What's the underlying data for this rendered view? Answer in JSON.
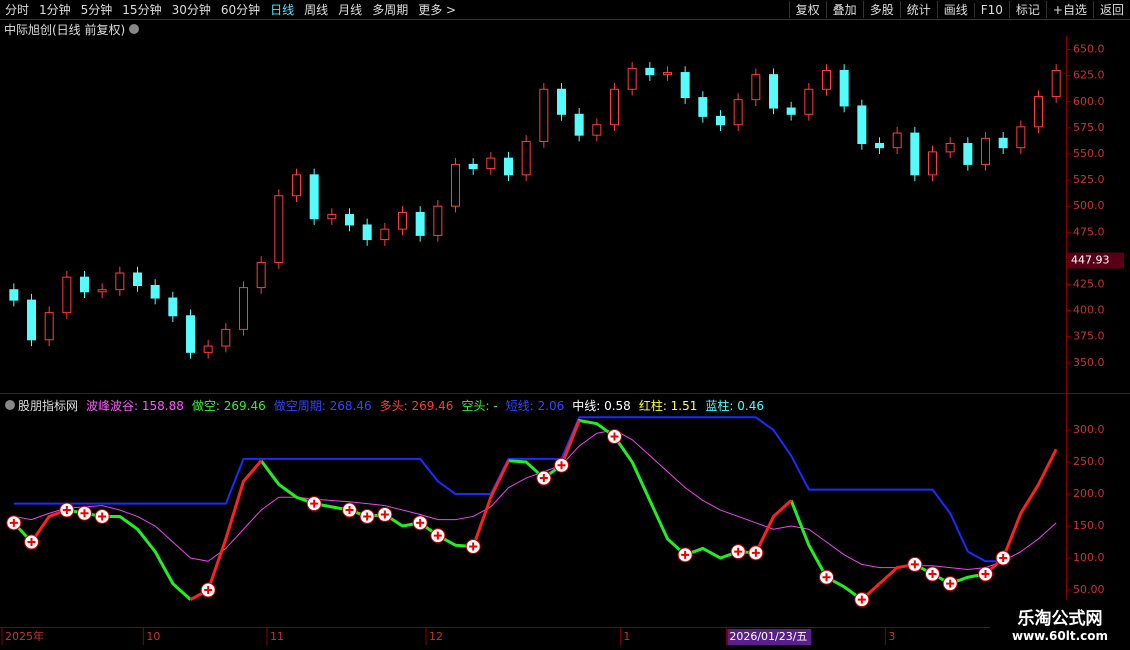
{
  "toolbar": {
    "left": [
      "分时",
      "1分钟",
      "5分钟",
      "15分钟",
      "30分钟",
      "60分钟",
      "日线",
      "周线",
      "月线",
      "多周期",
      "更多 >"
    ],
    "active": 6,
    "right": [
      "复权",
      "叠加",
      "多股",
      "统计",
      "画线",
      "F10",
      "标记",
      "+自选",
      "返回"
    ]
  },
  "chart_data": [
    {
      "type": "candlestick",
      "title": "中际旭创(日线 前复权)",
      "open": [
        420,
        410,
        372,
        398,
        432,
        418,
        420,
        436,
        424,
        412,
        395,
        360,
        366,
        382,
        422,
        446,
        510,
        530,
        488,
        492,
        482,
        468,
        478,
        494,
        472,
        500,
        540,
        536,
        546,
        530,
        562,
        612,
        588,
        568,
        578,
        612,
        632,
        626,
        628,
        604,
        586,
        578,
        602,
        626,
        594,
        588,
        612,
        630,
        596,
        560,
        556,
        570,
        530,
        552,
        560,
        540,
        565,
        556,
        576,
        605
      ],
      "high": [
        426,
        416,
        404,
        438,
        438,
        426,
        442,
        442,
        430,
        418,
        401,
        372,
        388,
        428,
        452,
        516,
        536,
        536,
        498,
        498,
        488,
        484,
        500,
        500,
        506,
        546,
        546,
        552,
        552,
        568,
        618,
        618,
        594,
        584,
        618,
        638,
        638,
        634,
        634,
        610,
        592,
        608,
        632,
        632,
        600,
        618,
        636,
        636,
        602,
        566,
        576,
        576,
        558,
        566,
        566,
        571,
        571,
        582,
        611,
        636
      ],
      "low": [
        404,
        366,
        366,
        392,
        412,
        412,
        414,
        418,
        406,
        389,
        354,
        354,
        360,
        376,
        416,
        440,
        504,
        482,
        482,
        476,
        462,
        462,
        472,
        466,
        466,
        494,
        530,
        530,
        524,
        524,
        556,
        582,
        562,
        562,
        572,
        606,
        620,
        620,
        598,
        580,
        572,
        572,
        596,
        588,
        582,
        582,
        606,
        590,
        554,
        550,
        550,
        524,
        524,
        546,
        534,
        534,
        550,
        550,
        570,
        599
      ],
      "close": [
        410,
        372,
        398,
        432,
        418,
        420,
        436,
        424,
        412,
        395,
        360,
        366,
        382,
        422,
        446,
        510,
        530,
        488,
        492,
        482,
        468,
        478,
        494,
        472,
        500,
        540,
        536,
        546,
        530,
        562,
        612,
        588,
        568,
        578,
        612,
        632,
        626,
        628,
        604,
        586,
        578,
        602,
        626,
        594,
        588,
        612,
        630,
        596,
        560,
        556,
        570,
        530,
        552,
        560,
        540,
        565,
        556,
        576,
        605,
        630
      ],
      "up_color": "#ff3c3c",
      "down_color": "#54fcfc",
      "ylim": [
        322,
        663
      ],
      "yticks": [
        {
          "value": 350,
          "label": "350.0"
        },
        {
          "value": 375,
          "label": "375.0"
        },
        {
          "value": 400,
          "label": "400.0"
        },
        {
          "value": 425,
          "label": "425.0"
        },
        {
          "value": 450,
          "label": "450.0"
        },
        {
          "value": 475,
          "label": "475.0"
        },
        {
          "value": 500,
          "label": "500.0"
        },
        {
          "value": 525,
          "label": "525.0"
        },
        {
          "value": 550,
          "label": "550.0"
        },
        {
          "value": 575,
          "label": "575.0"
        },
        {
          "value": 600,
          "label": "600.0"
        },
        {
          "value": 625,
          "label": "625.0"
        },
        {
          "value": 650,
          "label": "650.0"
        }
      ],
      "cursor_price": 447.93
    },
    {
      "type": "line",
      "title": "股朋指标网",
      "legend": [
        {
          "label": "波峰波谷: 158.88",
          "color": "#ff55ff"
        },
        {
          "label": "做空: 269.46",
          "color": "#33ee33"
        },
        {
          "label": "做空周期: 268.46",
          "color": "#3344ff"
        },
        {
          "label": "多头: 269.46",
          "color": "#ff3a3a"
        },
        {
          "label": "空头: -",
          "color": "#33ee33"
        },
        {
          "label": "短线: 2.06",
          "color": "#3344ff"
        },
        {
          "label": "中线: 0.58",
          "color": "#ffffff"
        },
        {
          "label": "红柱: 1.51",
          "color": "#ffff44"
        },
        {
          "label": "蓝柱: 0.46",
          "color": "#44ffff"
        }
      ],
      "series": [
        {
          "legend": 0,
          "color": "#ee44ee",
          "width": 1,
          "values": [
            165,
            160,
            170,
            178,
            180,
            182,
            175,
            165,
            150,
            125,
            100,
            95,
            115,
            145,
            175,
            195,
            195,
            192,
            190,
            188,
            185,
            182,
            175,
            168,
            160,
            160,
            165,
            180,
            210,
            225,
            235,
            245,
            275,
            295,
            300,
            285,
            260,
            235,
            210,
            190,
            175,
            165,
            155,
            145,
            150,
            145,
            125,
            105,
            90,
            85,
            85,
            88,
            88,
            85,
            82,
            85,
            95,
            110,
            130,
            155
          ]
        },
        {
          "legend": 2,
          "color": "#1a2cff",
          "width": 2,
          "values": [
            185,
            185,
            185,
            185,
            185,
            185,
            185,
            185,
            185,
            185,
            185,
            185,
            185,
            255,
            255,
            255,
            255,
            255,
            255,
            255,
            255,
            255,
            255,
            255,
            220,
            200,
            200,
            200,
            255,
            255,
            255,
            255,
            320,
            320,
            320,
            320,
            320,
            320,
            320,
            320,
            320,
            320,
            320,
            300,
            260,
            207,
            207,
            207,
            207,
            207,
            207,
            207,
            207,
            170,
            110,
            95,
            95,
            null,
            null,
            null
          ]
        },
        {
          "legend": 1,
          "color": "#22ee22",
          "width": 3,
          "values": [
            155,
            125,
            null,
            175,
            170,
            165,
            165,
            145,
            110,
            60,
            35,
            null,
            null,
            null,
            252,
            215,
            195,
            185,
            180,
            175,
            165,
            168,
            150,
            155,
            135,
            120,
            118,
            null,
            252,
            250,
            225,
            245,
            315,
            310,
            290,
            250,
            190,
            130,
            105,
            115,
            100,
            110,
            108,
            null,
            190,
            120,
            70,
            55,
            35,
            null,
            null,
            90,
            75,
            60,
            70,
            75,
            null,
            null,
            null,
            null
          ]
        },
        {
          "legend": 3,
          "color": "#ff2020",
          "width": 3,
          "values": [
            null,
            125,
            165,
            175,
            null,
            null,
            null,
            null,
            null,
            null,
            35,
            50,
            130,
            220,
            252,
            null,
            null,
            null,
            null,
            null,
            null,
            null,
            null,
            null,
            null,
            null,
            118,
            195,
            252,
            null,
            null,
            245,
            315,
            null,
            null,
            null,
            null,
            null,
            null,
            null,
            null,
            null,
            108,
            165,
            190,
            null,
            null,
            null,
            35,
            60,
            85,
            90,
            null,
            null,
            null,
            75,
            100,
            170,
            215,
            270
          ]
        }
      ],
      "signals": [
        0,
        1,
        3,
        4,
        5,
        11,
        17,
        19,
        20,
        21,
        23,
        24,
        26,
        30,
        31,
        34,
        38,
        41,
        42,
        46,
        48,
        51,
        52,
        53,
        55,
        56
      ],
      "ylim": [
        0,
        347
      ],
      "yticks": [
        {
          "value": 50,
          "label": "50.00"
        },
        {
          "value": 100,
          "label": "100.0"
        },
        {
          "value": 150,
          "label": "150.0"
        },
        {
          "value": 200,
          "label": "200.0"
        },
        {
          "value": 250,
          "label": "250.0"
        },
        {
          "value": 300,
          "label": "300.0"
        }
      ],
      "categories": [
        "2025年",
        null,
        null,
        null,
        null,
        null,
        null,
        null,
        "10",
        null,
        null,
        null,
        null,
        null,
        null,
        "11",
        null,
        null,
        null,
        null,
        null,
        null,
        null,
        null,
        "12",
        null,
        null,
        null,
        null,
        null,
        null,
        null,
        null,
        null,
        null,
        "1",
        null,
        null,
        null,
        null,
        null,
        "2026/01/23/五",
        null,
        null,
        null,
        null,
        null,
        null,
        null,
        null,
        "3",
        null,
        null,
        null,
        null,
        null,
        null,
        null,
        null,
        null
      ],
      "highlight_category": 41
    }
  ],
  "watermark": {
    "title": "乐淘公式网",
    "url": "www.60lt.com"
  }
}
